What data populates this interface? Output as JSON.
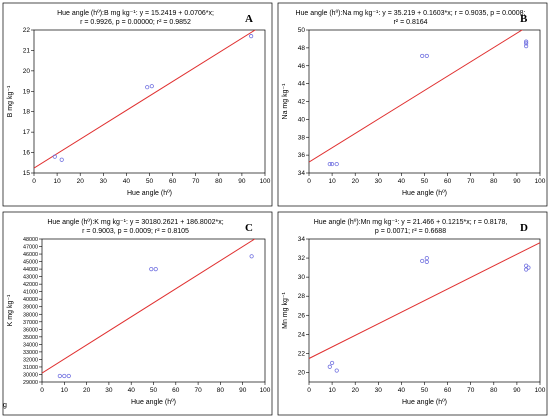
{
  "colors": {
    "fit_line": "#e03030",
    "points": "#7070e0",
    "frame": "#000000"
  },
  "corner_mark": "g",
  "chart_data": [
    {
      "type": "scatter",
      "panel_letter": "A",
      "title_line1": "Hue angle (hº):B mg kg⁻¹:   y = 15.2419 + 0.0706*x;",
      "title_line2": "r = 0.9926, p = 0.00000; r² = 0.9852",
      "xlabel": "Hue angle (hº)",
      "ylabel": "B mg kg⁻¹",
      "xlim": [
        0,
        100
      ],
      "ylim": [
        15,
        22
      ],
      "xticks": [
        0,
        10,
        20,
        30,
        40,
        50,
        60,
        70,
        80,
        90,
        100
      ],
      "yticks": [
        15,
        16,
        17,
        18,
        19,
        20,
        21,
        22
      ],
      "fit": {
        "intercept": 15.2419,
        "slope": 0.0706
      },
      "points": [
        [
          9,
          15.8
        ],
        [
          12,
          15.65
        ],
        [
          49,
          19.2
        ],
        [
          51,
          19.25
        ],
        [
          94,
          21.7
        ]
      ]
    },
    {
      "type": "scatter",
      "panel_letter": "B",
      "title_line1": "Hue angle (hº):Na mg kg⁻¹:   y = 35.219 + 0.1603*x;  r = 0.9035, p = 0.0008;",
      "title_line2": "r² = 0.8164",
      "xlabel": "Hue angle (hº)",
      "ylabel": "Na mg kg⁻¹",
      "xlim": [
        0,
        100
      ],
      "ylim": [
        34,
        50
      ],
      "xticks": [
        0,
        10,
        20,
        30,
        40,
        50,
        60,
        70,
        80,
        90,
        100
      ],
      "yticks": [
        34,
        36,
        38,
        40,
        42,
        44,
        46,
        48,
        50
      ],
      "fit": {
        "intercept": 35.219,
        "slope": 0.1603
      },
      "points": [
        [
          9,
          35
        ],
        [
          10,
          35
        ],
        [
          12,
          35
        ],
        [
          49,
          47.1
        ],
        [
          51,
          47.1
        ],
        [
          94,
          48.2
        ],
        [
          94,
          48.5
        ],
        [
          94,
          48.7
        ]
      ]
    },
    {
      "type": "scatter",
      "panel_letter": "C",
      "title_line1": "Hue angle (hº):K mg kg⁻¹:   y = 30180.2621 + 186.8002*x;",
      "title_line2": "r = 0.9003, p = 0.0009; r² = 0.8105",
      "xlabel": "Hue angle (hº)",
      "ylabel": "K mg kg⁻¹",
      "xlim": [
        0,
        100
      ],
      "ylim": [
        29000,
        48000
      ],
      "xticks": [
        0,
        10,
        20,
        30,
        40,
        50,
        60,
        70,
        80,
        90,
        100
      ],
      "yticks": [
        29000,
        30000,
        31000,
        32000,
        33000,
        34000,
        35000,
        36000,
        37000,
        38000,
        39000,
        40000,
        41000,
        42000,
        43000,
        44000,
        45000,
        46000,
        47000,
        48000
      ],
      "fit": {
        "intercept": 30180.2621,
        "slope": 186.8002
      },
      "points": [
        [
          8,
          29800
        ],
        [
          10,
          29800
        ],
        [
          12,
          29800
        ],
        [
          49,
          44000
        ],
        [
          51,
          44000
        ],
        [
          94,
          45700
        ]
      ]
    },
    {
      "type": "scatter",
      "panel_letter": "D",
      "title_line1": "Hue angle (hº):Mn mg kg⁻¹:   y = 21.466 + 0.1215*x;  r = 0.8178,",
      "title_line2": "p = 0.0071; r² = 0.6688",
      "xlabel": "Hue angle (hº)",
      "ylabel": "Mn mg kg⁻¹",
      "xlim": [
        0,
        100
      ],
      "ylim": [
        19,
        34
      ],
      "xticks": [
        0,
        10,
        20,
        30,
        40,
        50,
        60,
        70,
        80,
        90,
        100
      ],
      "yticks": [
        20,
        22,
        24,
        26,
        28,
        30,
        32,
        34
      ],
      "fit": {
        "intercept": 21.466,
        "slope": 0.1215
      },
      "points": [
        [
          9,
          20.6
        ],
        [
          10,
          21
        ],
        [
          12,
          20.2
        ],
        [
          49,
          31.7
        ],
        [
          51,
          31.6
        ],
        [
          51,
          32
        ],
        [
          94,
          31.2
        ],
        [
          94,
          30.8
        ],
        [
          95,
          31
        ]
      ]
    }
  ]
}
